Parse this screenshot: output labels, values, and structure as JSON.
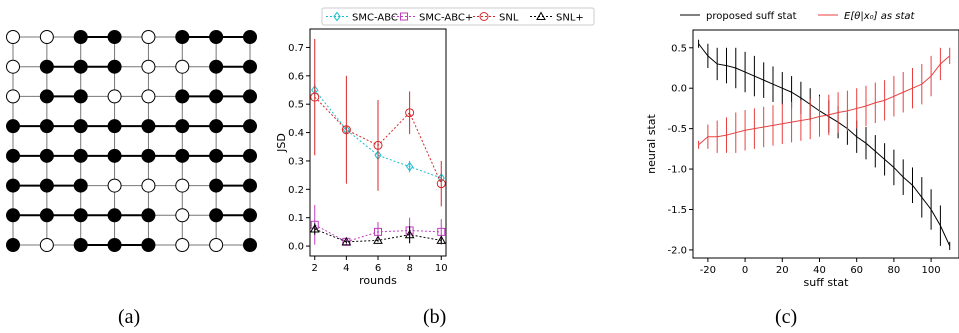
{
  "captions": [
    "(a)",
    "(b)",
    "(c)"
  ],
  "grid_panel": {
    "rows": 8,
    "cols": 8,
    "states": [
      [
        0,
        0,
        1,
        1,
        0,
        1,
        1,
        1
      ],
      [
        0,
        1,
        1,
        1,
        0,
        0,
        1,
        1
      ],
      [
        0,
        1,
        1,
        0,
        0,
        1,
        1,
        1
      ],
      [
        1,
        1,
        1,
        1,
        1,
        1,
        1,
        1
      ],
      [
        1,
        1,
        1,
        1,
        1,
        1,
        1,
        1
      ],
      [
        1,
        1,
        1,
        0,
        0,
        0,
        1,
        1
      ],
      [
        1,
        1,
        1,
        1,
        1,
        0,
        1,
        1
      ],
      [
        1,
        0,
        1,
        1,
        1,
        0,
        0,
        1
      ]
    ],
    "colors": {
      "filled": "#000000",
      "empty": "#ffffff",
      "line": "#777777"
    }
  },
  "chart_data": [
    {
      "type": "line",
      "title": "",
      "xlabel": "rounds",
      "ylabel": "JSD",
      "x": [
        2,
        4,
        6,
        8,
        10
      ],
      "xticks": [
        2,
        4,
        6,
        8,
        10
      ],
      "yticks": [
        0.0,
        0.1,
        0.2,
        0.3,
        0.4,
        0.5,
        0.6,
        0.7
      ],
      "xlim": [
        1.7,
        10.3
      ],
      "ylim": [
        -0.035,
        0.765
      ],
      "legend_position": "top",
      "grid": false,
      "series": [
        {
          "name": "SMC-ABC",
          "color": "#17becf",
          "marker": "diamond",
          "values": [
            0.55,
            0.41,
            0.32,
            0.28,
            0.24
          ],
          "err": [
            0.02,
            0.01,
            0.015,
            0.02,
            0.01
          ]
        },
        {
          "name": "SMC-ABC+",
          "color": "#bf3fbf",
          "marker": "square",
          "values": [
            0.075,
            0.015,
            0.05,
            0.055,
            0.05
          ],
          "err": [
            0.07,
            0.01,
            0.035,
            0.045,
            0.045
          ]
        },
        {
          "name": "SNL",
          "color": "#d62728",
          "marker": "circle",
          "values": [
            0.525,
            0.41,
            0.355,
            0.47,
            0.22
          ],
          "err": [
            0.205,
            0.19,
            0.16,
            0.075,
            0.08
          ]
        },
        {
          "name": "SNL+",
          "color": "#000000",
          "marker": "triangle",
          "values": [
            0.06,
            0.015,
            0.02,
            0.04,
            0.02
          ],
          "err": [
            0.02,
            0.005,
            0.005,
            0.03,
            0.01
          ]
        }
      ]
    },
    {
      "type": "line",
      "title": "",
      "xlabel": "suff stat",
      "ylabel": "neural stat",
      "xticks": [
        -20,
        0,
        20,
        40,
        60,
        80,
        100
      ],
      "yticks": [
        -2.0,
        -1.5,
        -1.0,
        -0.5,
        0.0,
        0.5
      ],
      "xlim": [
        -28,
        115
      ],
      "ylim": [
        -2.1,
        0.72
      ],
      "legend_position": "top",
      "grid": false,
      "series": [
        {
          "name": "proposed suff stat",
          "color": "#000000",
          "x": [
            -25,
            -20,
            -15,
            -10,
            -5,
            0,
            5,
            10,
            15,
            20,
            25,
            30,
            35,
            40,
            45,
            50,
            55,
            60,
            65,
            70,
            75,
            80,
            85,
            90,
            95,
            100,
            105,
            110
          ],
          "values": [
            0.55,
            0.4,
            0.3,
            0.28,
            0.25,
            0.2,
            0.15,
            0.1,
            0.05,
            0.0,
            -0.05,
            -0.12,
            -0.2,
            -0.28,
            -0.35,
            -0.42,
            -0.5,
            -0.6,
            -0.68,
            -0.78,
            -0.88,
            -0.98,
            -1.1,
            -1.2,
            -1.35,
            -1.5,
            -1.7,
            -1.95
          ],
          "err": [
            0.05,
            0.15,
            0.2,
            0.22,
            0.25,
            0.25,
            0.25,
            0.22,
            0.22,
            0.2,
            0.2,
            0.2,
            0.2,
            0.2,
            0.2,
            0.2,
            0.2,
            0.2,
            0.2,
            0.2,
            0.2,
            0.22,
            0.22,
            0.22,
            0.25,
            0.25,
            0.25,
            0.05
          ]
        },
        {
          "name": "E[θ|x₀] as stat",
          "color": "#e84040",
          "x": [
            -25,
            -20,
            -15,
            -10,
            -5,
            0,
            5,
            10,
            15,
            20,
            25,
            30,
            35,
            40,
            45,
            50,
            55,
            60,
            65,
            70,
            75,
            80,
            85,
            90,
            95,
            100,
            105,
            110
          ],
          "values": [
            -0.7,
            -0.6,
            -0.6,
            -0.58,
            -0.55,
            -0.52,
            -0.5,
            -0.48,
            -0.46,
            -0.44,
            -0.42,
            -0.4,
            -0.38,
            -0.35,
            -0.33,
            -0.3,
            -0.28,
            -0.25,
            -0.22,
            -0.18,
            -0.15,
            -0.1,
            -0.05,
            0.0,
            0.05,
            0.15,
            0.3,
            0.4
          ],
          "err": [
            0.05,
            0.15,
            0.2,
            0.22,
            0.25,
            0.25,
            0.25,
            0.25,
            0.25,
            0.25,
            0.25,
            0.25,
            0.25,
            0.25,
            0.25,
            0.25,
            0.25,
            0.25,
            0.25,
            0.25,
            0.25,
            0.25,
            0.25,
            0.25,
            0.25,
            0.25,
            0.2,
            0.1
          ]
        }
      ]
    }
  ]
}
